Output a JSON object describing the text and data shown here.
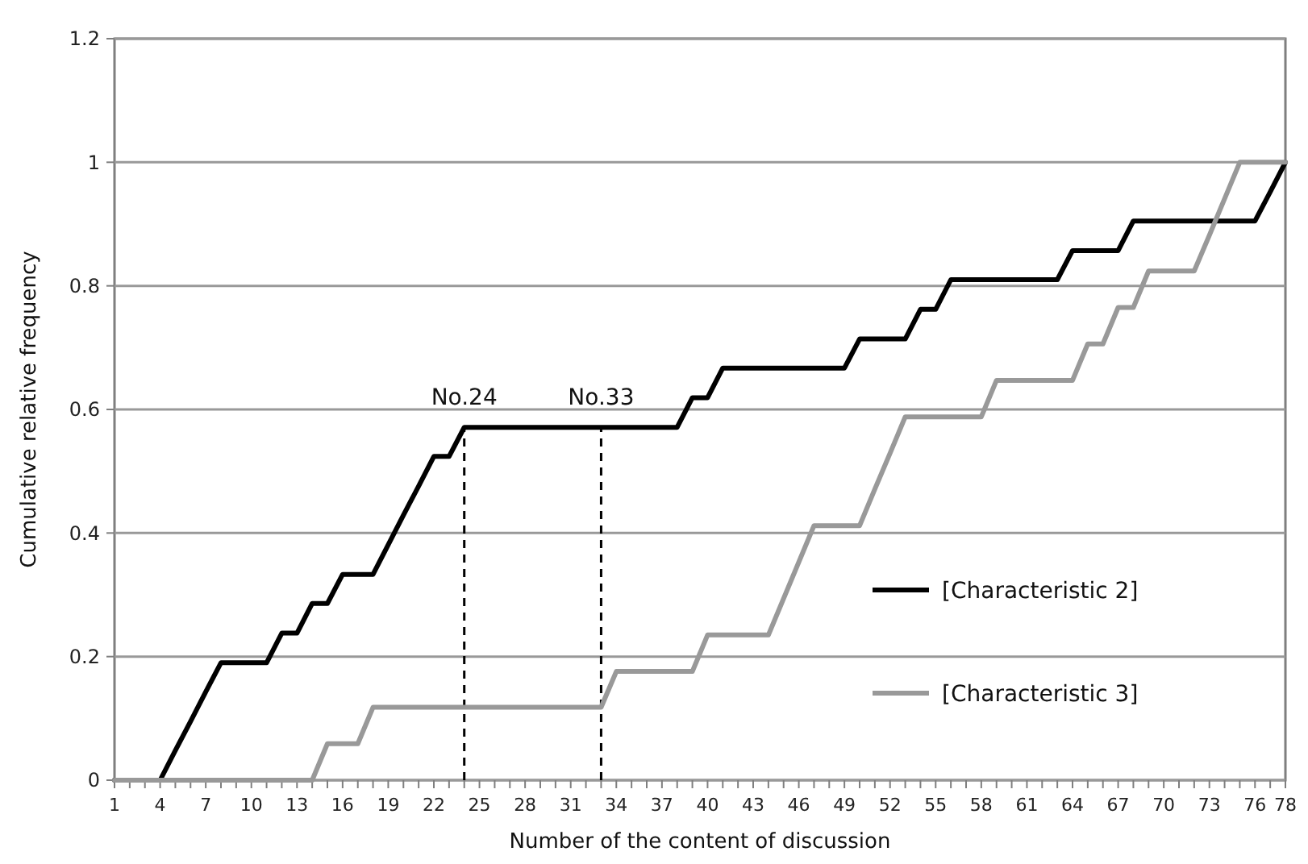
{
  "chart_data": {
    "type": "line",
    "xlabel": "Number of the content of discussion",
    "ylabel": "Cumulative relative frequency",
    "x": [
      1,
      2,
      3,
      4,
      5,
      6,
      7,
      8,
      9,
      10,
      11,
      12,
      13,
      14,
      15,
      16,
      17,
      18,
      19,
      20,
      21,
      22,
      23,
      24,
      25,
      26,
      27,
      28,
      29,
      30,
      31,
      32,
      33,
      34,
      35,
      36,
      37,
      38,
      39,
      40,
      41,
      42,
      43,
      44,
      45,
      46,
      47,
      48,
      49,
      50,
      51,
      52,
      53,
      54,
      55,
      56,
      57,
      58,
      59,
      60,
      61,
      62,
      63,
      64,
      65,
      66,
      67,
      68,
      69,
      70,
      71,
      72,
      73,
      74,
      75,
      76,
      77,
      78
    ],
    "series": [
      {
        "name": "[Characteristic 2]",
        "color": "#000000",
        "values": [
          0,
          0,
          0,
          0,
          0.048,
          0.095,
          0.143,
          0.19,
          0.19,
          0.19,
          0.19,
          0.238,
          0.238,
          0.286,
          0.286,
          0.333,
          0.333,
          0.333,
          0.381,
          0.429,
          0.476,
          0.524,
          0.524,
          0.571,
          0.571,
          0.571,
          0.571,
          0.571,
          0.571,
          0.571,
          0.571,
          0.571,
          0.571,
          0.571,
          0.571,
          0.571,
          0.571,
          0.571,
          0.619,
          0.619,
          0.667,
          0.667,
          0.667,
          0.667,
          0.667,
          0.667,
          0.667,
          0.667,
          0.667,
          0.714,
          0.714,
          0.714,
          0.714,
          0.762,
          0.762,
          0.81,
          0.81,
          0.81,
          0.81,
          0.81,
          0.81,
          0.81,
          0.81,
          0.857,
          0.857,
          0.857,
          0.857,
          0.905,
          0.905,
          0.905,
          0.905,
          0.905,
          0.905,
          0.905,
          0.905,
          0.905,
          0.952,
          1.0
        ]
      },
      {
        "name": "[Characteristic 3]",
        "color": "#999999",
        "values": [
          0,
          0,
          0,
          0,
          0,
          0,
          0,
          0,
          0,
          0,
          0,
          0,
          0,
          0,
          0.059,
          0.059,
          0.059,
          0.118,
          0.118,
          0.118,
          0.118,
          0.118,
          0.118,
          0.118,
          0.118,
          0.118,
          0.118,
          0.118,
          0.118,
          0.118,
          0.118,
          0.118,
          0.118,
          0.176,
          0.176,
          0.176,
          0.176,
          0.176,
          0.176,
          0.235,
          0.235,
          0.235,
          0.235,
          0.235,
          0.294,
          0.353,
          0.412,
          0.412,
          0.412,
          0.412,
          0.471,
          0.529,
          0.588,
          0.588,
          0.588,
          0.588,
          0.588,
          0.588,
          0.647,
          0.647,
          0.647,
          0.647,
          0.647,
          0.647,
          0.706,
          0.706,
          0.765,
          0.765,
          0.824,
          0.824,
          0.824,
          0.824,
          0.882,
          0.941,
          1.0,
          1.0,
          1.0,
          1.0
        ]
      }
    ],
    "xlim": [
      1,
      78
    ],
    "xticks": [
      1,
      {
        "value": 2,
        "label": null
      },
      {
        "value": 3,
        "label": null
      },
      4,
      {
        "value": 5,
        "label": null
      },
      {
        "value": 6,
        "label": null
      },
      7,
      {
        "value": 8,
        "label": null
      },
      {
        "value": 9,
        "label": null
      },
      10,
      {
        "value": 11,
        "label": null
      },
      {
        "value": 12,
        "label": null
      },
      13,
      {
        "value": 14,
        "label": null
      },
      {
        "value": 15,
        "label": null
      },
      16,
      {
        "value": 17,
        "label": null
      },
      {
        "value": 18,
        "label": null
      },
      19,
      {
        "value": 20,
        "label": null
      },
      {
        "value": 21,
        "label": null
      },
      22,
      {
        "value": 23,
        "label": null
      },
      {
        "value": 24,
        "label": null
      },
      25,
      {
        "value": 26,
        "label": null
      },
      {
        "value": 27,
        "label": null
      },
      28,
      {
        "value": 29,
        "label": null
      },
      {
        "value": 30,
        "label": null
      },
      31,
      {
        "value": 32,
        "label": null
      },
      {
        "value": 33,
        "label": null
      },
      34,
      {
        "value": 35,
        "label": null
      },
      {
        "value": 36,
        "label": null
      },
      37,
      {
        "value": 38,
        "label": null
      },
      {
        "value": 39,
        "label": null
      },
      40,
      {
        "value": 41,
        "label": null
      },
      {
        "value": 42,
        "label": null
      },
      43,
      {
        "value": 44,
        "label": null
      },
      {
        "value": 45,
        "label": null
      },
      46,
      {
        "value": 47,
        "label": null
      },
      {
        "value": 48,
        "label": null
      },
      49,
      {
        "value": 50,
        "label": null
      },
      {
        "value": 51,
        "label": null
      },
      52,
      {
        "value": 53,
        "label": null
      },
      {
        "value": 54,
        "label": null
      },
      55,
      {
        "value": 56,
        "label": null
      },
      {
        "value": 57,
        "label": null
      },
      58,
      {
        "value": 59,
        "label": null
      },
      {
        "value": 60,
        "label": null
      },
      61,
      {
        "value": 62,
        "label": null
      },
      {
        "value": 63,
        "label": null
      },
      64,
      {
        "value": 65,
        "label": null
      },
      {
        "value": 66,
        "label": null
      },
      67,
      {
        "value": 68,
        "label": null
      },
      {
        "value": 69,
        "label": null
      },
      70,
      {
        "value": 71,
        "label": null
      },
      {
        "value": 72,
        "label": null
      },
      73,
      {
        "value": 74,
        "label": null
      },
      {
        "value": 75,
        "label": null
      },
      76,
      {
        "value": 77,
        "label": null
      },
      78
    ],
    "ylim": [
      0,
      1.2
    ],
    "yticks": [
      0,
      0.2,
      0.4,
      0.6,
      0.8,
      1,
      1.2
    ],
    "grid": "y",
    "legend": "right",
    "marker": "none",
    "line_style": "solid",
    "ref_lines": [
      {
        "axis": "x",
        "value": 24,
        "label": "No.24",
        "line_style": "dashed",
        "color": "#000000"
      },
      {
        "axis": "x",
        "value": 33,
        "label": "No.33",
        "line_style": "dashed",
        "color": "#000000"
      }
    ]
  }
}
